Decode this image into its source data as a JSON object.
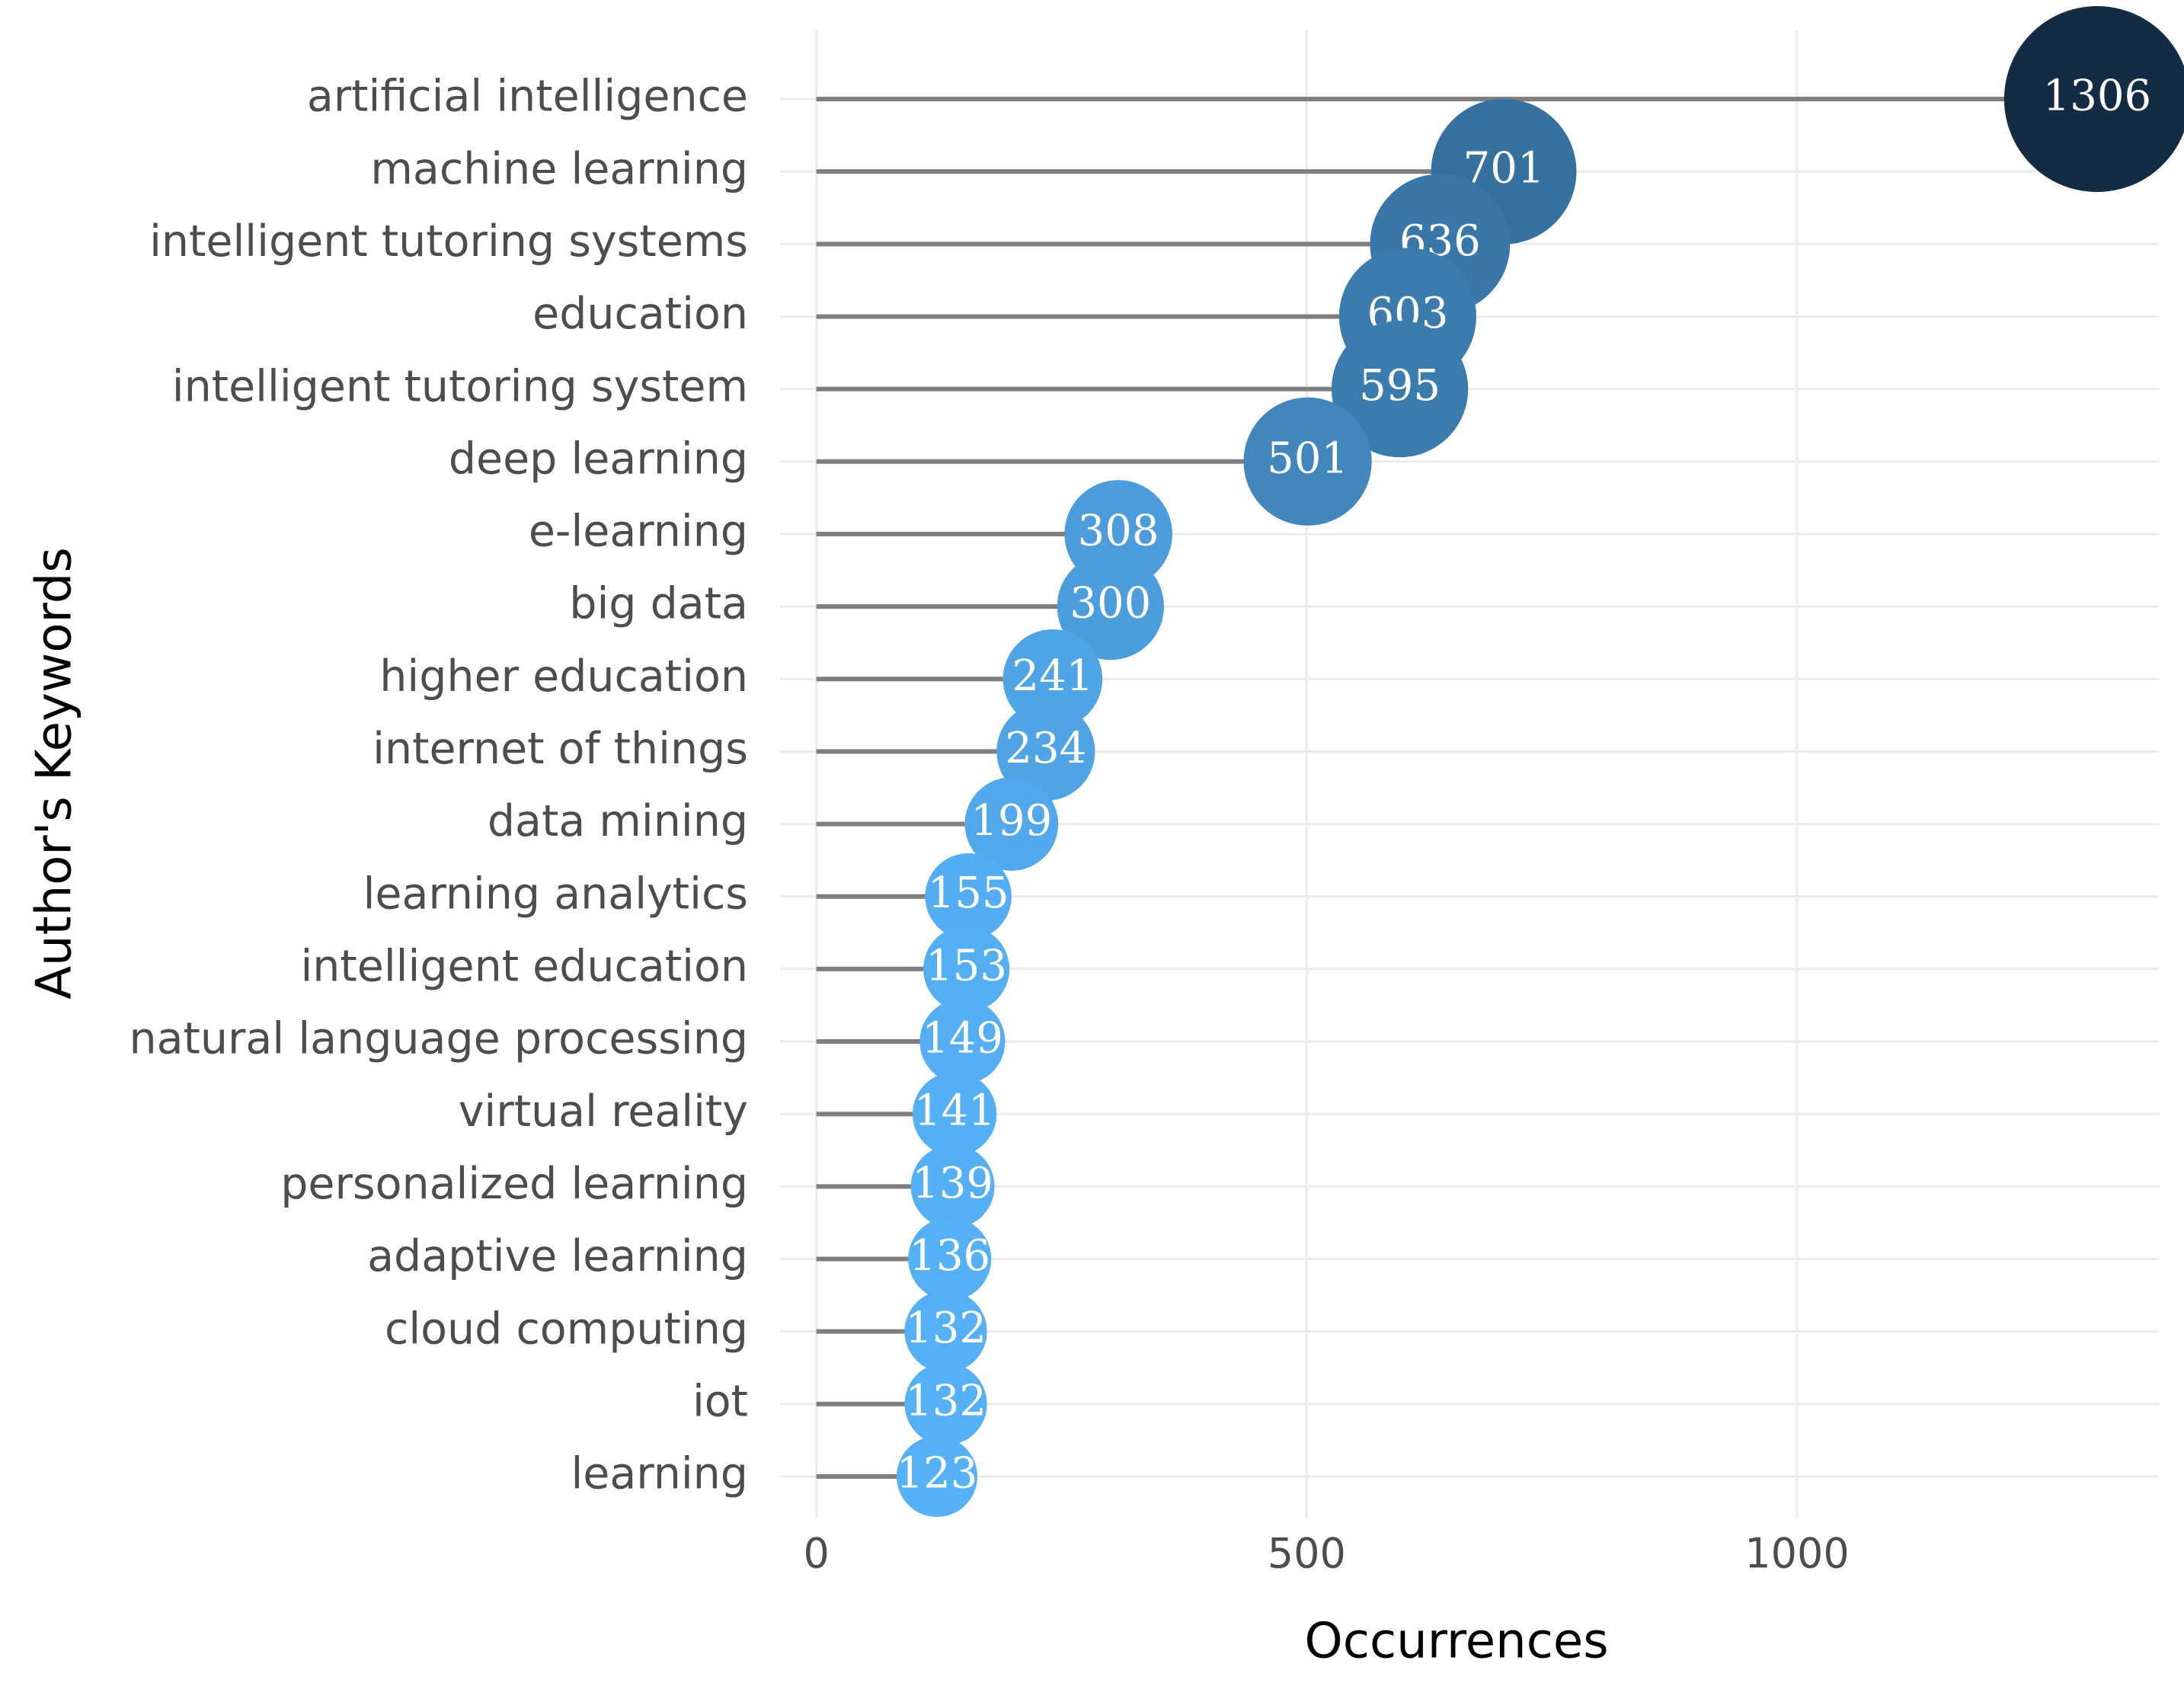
{
  "chart_data": {
    "type": "lollipop",
    "x_label": "Occurrences",
    "y_label": "Author's Keywords",
    "categories": [
      "artificial intelligence",
      "machine learning",
      "intelligent tutoring systems",
      "education",
      "intelligent tutoring system",
      "deep learning",
      "e-learning",
      "big data",
      "higher education",
      "internet of things",
      "data mining",
      "learning analytics",
      "intelligent education",
      "natural language processing",
      "virtual reality",
      "personalized learning",
      "adaptive learning",
      "cloud computing",
      "iot",
      "learning"
    ],
    "values": [
      1306,
      701,
      636,
      603,
      595,
      501,
      308,
      300,
      241,
      234,
      199,
      155,
      153,
      149,
      141,
      139,
      136,
      132,
      132,
      123
    ],
    "xlim": [
      -37,
      1369
    ],
    "xticks": [
      0,
      500,
      1000
    ],
    "color_low": "#56b1f7",
    "color_high": "#132b43",
    "stem_color": "#7f7f7f",
    "grid": true
  }
}
